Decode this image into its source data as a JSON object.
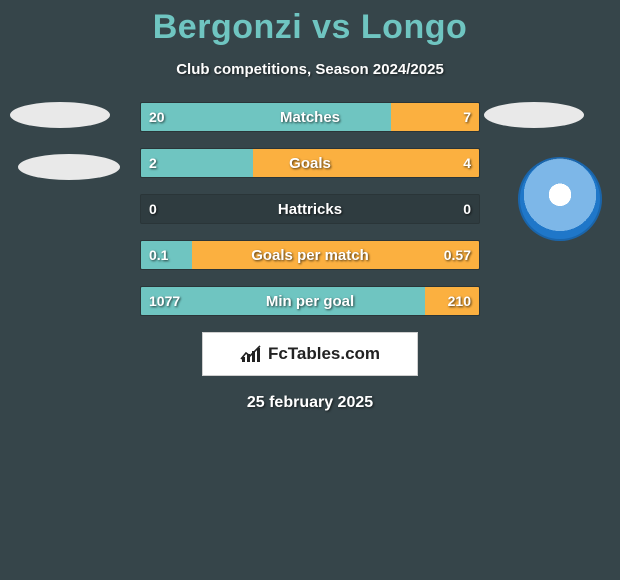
{
  "title": "Bergonzi vs Longo",
  "subtitle": "Club competitions, Season 2024/2025",
  "date": "25 february 2025",
  "logo_text": "FcTables.com",
  "colors": {
    "background": "#36454a",
    "title": "#6fc5c1",
    "left_bar": "#6fc5c1",
    "right_bar": "#fbb040",
    "text": "#ffffff",
    "logo_bg": "#ffffff",
    "logo_text": "#222222"
  },
  "bars": [
    {
      "label": "Matches",
      "left_text": "20",
      "right_text": "7",
      "left_pct": 74,
      "right_pct": 26
    },
    {
      "label": "Goals",
      "left_text": "2",
      "right_text": "4",
      "left_pct": 33,
      "right_pct": 67
    },
    {
      "label": "Hattricks",
      "left_text": "0",
      "right_text": "0",
      "left_pct": 0,
      "right_pct": 0
    },
    {
      "label": "Goals per match",
      "left_text": "0.1",
      "right_text": "0.57",
      "left_pct": 15,
      "right_pct": 85
    },
    {
      "label": "Min per goal",
      "left_text": "1077",
      "right_text": "210",
      "left_pct": 84,
      "right_pct": 16
    }
  ]
}
